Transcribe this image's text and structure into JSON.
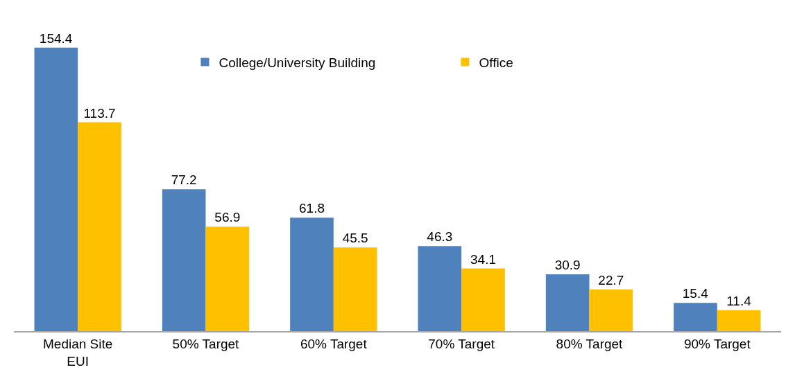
{
  "chart_data": {
    "type": "bar",
    "categories": [
      "Median Site EUI",
      "50% Target",
      "60% Target",
      "70% Target",
      "80% Target",
      "90% Target"
    ],
    "series": [
      {
        "name": "College/University Building",
        "color": "#4f81bd",
        "values": [
          154.4,
          77.2,
          61.8,
          46.3,
          30.9,
          15.4
        ]
      },
      {
        "name": "Office",
        "color": "#ffc000",
        "values": [
          113.7,
          56.9,
          45.5,
          34.1,
          22.7,
          11.4
        ]
      }
    ],
    "data_labels": true,
    "legend": "top",
    "tick_labels": "x"
  }
}
